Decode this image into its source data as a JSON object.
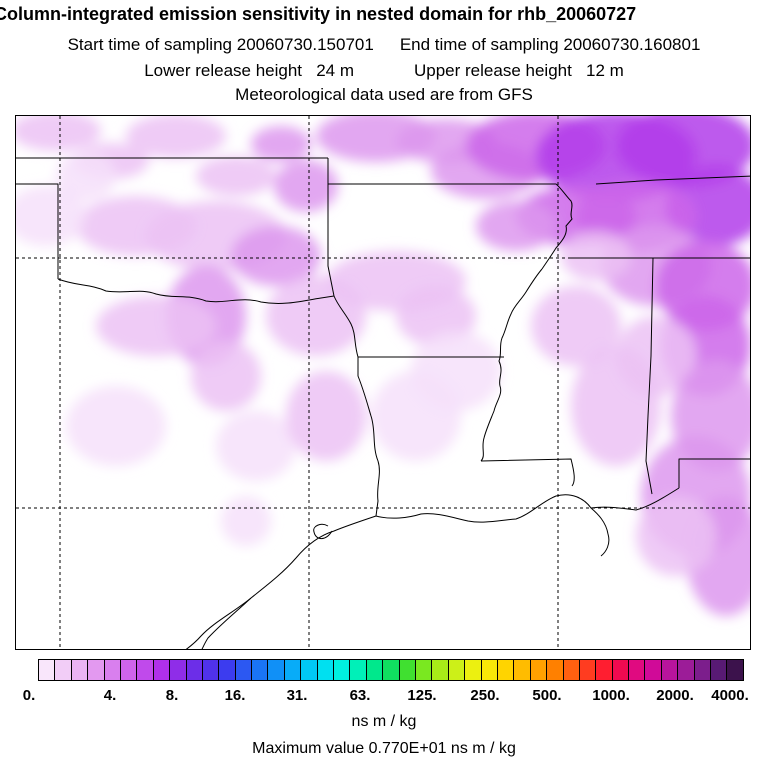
{
  "title": {
    "line1": "Column-integrated emission sensitivity in nested domain for rhb_20060727",
    "start_label": "Start time of sampling",
    "start_value": "20060730.150701",
    "end_label": "End time of sampling",
    "end_value": "20060730.160801",
    "lower_label": "Lower release height",
    "lower_value": "24 m",
    "upper_label": "Upper release height",
    "upper_value": "12 m",
    "line4": "Meteorological data used are from GFS"
  },
  "colorbar": {
    "ticks": [
      "0.",
      "4.",
      "8.",
      "16.",
      "31.",
      "63.",
      "125.",
      "250.",
      "500.",
      "1000.",
      "2000.",
      "4000."
    ],
    "colors": [
      "#f9e6fb",
      "#f2cdf7",
      "#eab3f3",
      "#e399f0",
      "#d97fee",
      "#cf64ec",
      "#c04aeb",
      "#b030ea",
      "#8f2de8",
      "#6c2ee8",
      "#5032ea",
      "#3c3cef",
      "#2c58f2",
      "#1a74f5",
      "#1090f7",
      "#08acf8",
      "#00c8f5",
      "#00e0f0",
      "#00f0e0",
      "#00f0b8",
      "#00e88c",
      "#10e060",
      "#40e030",
      "#7ae820",
      "#a8ec18",
      "#ccf018",
      "#ecf010",
      "#f8e808",
      "#ffd400",
      "#ffbc00",
      "#ffa000",
      "#ff8000",
      "#ff6010",
      "#ff3c20",
      "#ff1e30",
      "#f00a50",
      "#e00a80",
      "#d00a98",
      "#b8149c",
      "#9c1c98",
      "#7c1e8c",
      "#581a74",
      "#3c124c"
    ],
    "units": "ns m / kg"
  },
  "max_value_text": "Maximum value  0.770E+01 ns m / kg",
  "map": {
    "land_color": "#ffffff",
    "border_color": "#000000",
    "gridline_style": "dashed",
    "sensitivity_colors": [
      "#f6e0fa",
      "#ecc2f5",
      "#dd98ef",
      "#cc66ea",
      "#b13cea",
      "#9d1ee8"
    ]
  }
}
